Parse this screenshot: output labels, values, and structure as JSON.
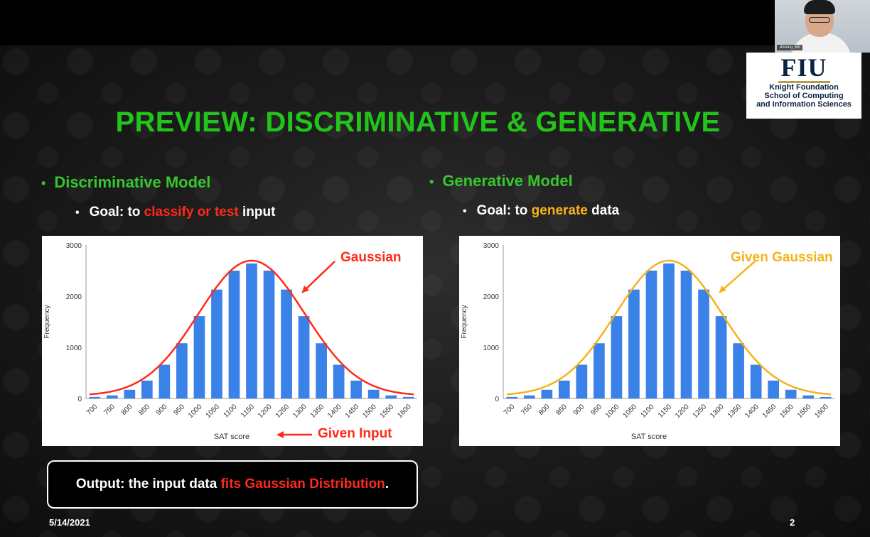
{
  "slide": {
    "title": "PREVIEW: DISCRIMINATIVE & GENERATIVE",
    "left": {
      "heading": "Discriminative Model",
      "goal_prefix": "Goal: to ",
      "goal_highlight": "classify or test",
      "goal_suffix": " input",
      "annotation_curve": "Gaussian",
      "annotation_input": "Given Input",
      "annotation_curve_color": "#ff2a1a"
    },
    "right": {
      "heading": "Generative Model",
      "goal_prefix": "Goal: to ",
      "goal_highlight": "generate",
      "goal_suffix": " data",
      "annotation_curve": "Given Gaussian",
      "annotation_curve_color": "#f5b21c"
    },
    "output": {
      "prefix": "Output: the input data ",
      "highlight": "fits Gaussian Distribution",
      "suffix": "."
    },
    "footer": {
      "date": "5/14/2021",
      "page": "2"
    }
  },
  "webcam": {
    "name": "Jimeng Shi"
  },
  "logo": {
    "letters": "FIU",
    "line1": "Knight Foundation",
    "line2": "School of Computing",
    "line3": "and Information Sciences"
  },
  "colors": {
    "title": "#22c41a",
    "heading": "#36c72c",
    "bar": "#3b82e8",
    "highlight_red": "#ff2a1a",
    "highlight_orange": "#f5b21c"
  },
  "chart_data": [
    {
      "type": "bar",
      "categories": [
        "700",
        "750",
        "800",
        "850",
        "900",
        "950",
        "1000",
        "1050",
        "1100",
        "1150",
        "1200",
        "1250",
        "1300",
        "1350",
        "1400",
        "1450",
        "1500",
        "1550",
        "1600"
      ],
      "values": [
        30,
        60,
        170,
        350,
        660,
        1080,
        1610,
        2130,
        2500,
        2640,
        2500,
        2130,
        1610,
        1080,
        660,
        350,
        170,
        60,
        30
      ],
      "xlabel": "SAT score",
      "ylabel": "Frequency",
      "ylim": [
        0,
        3000
      ],
      "yticks": [
        "0",
        "1000",
        "2000",
        "3000"
      ],
      "overlay": "gaussian curve",
      "curve_color": "#ff2a1a"
    },
    {
      "type": "bar",
      "categories": [
        "700",
        "750",
        "800",
        "850",
        "900",
        "950",
        "1000",
        "1050",
        "1100",
        "1150",
        "1200",
        "1250",
        "1300",
        "1350",
        "1400",
        "1450",
        "1500",
        "1550",
        "1600"
      ],
      "values": [
        30,
        60,
        170,
        350,
        660,
        1080,
        1610,
        2130,
        2500,
        2640,
        2500,
        2130,
        1610,
        1080,
        660,
        350,
        170,
        60,
        30
      ],
      "xlabel": "SAT score",
      "ylabel": "Frequency",
      "ylim": [
        0,
        3000
      ],
      "yticks": [
        "0",
        "1000",
        "2000",
        "3000"
      ],
      "overlay": "gaussian curve",
      "curve_color": "#f5b21c"
    }
  ]
}
